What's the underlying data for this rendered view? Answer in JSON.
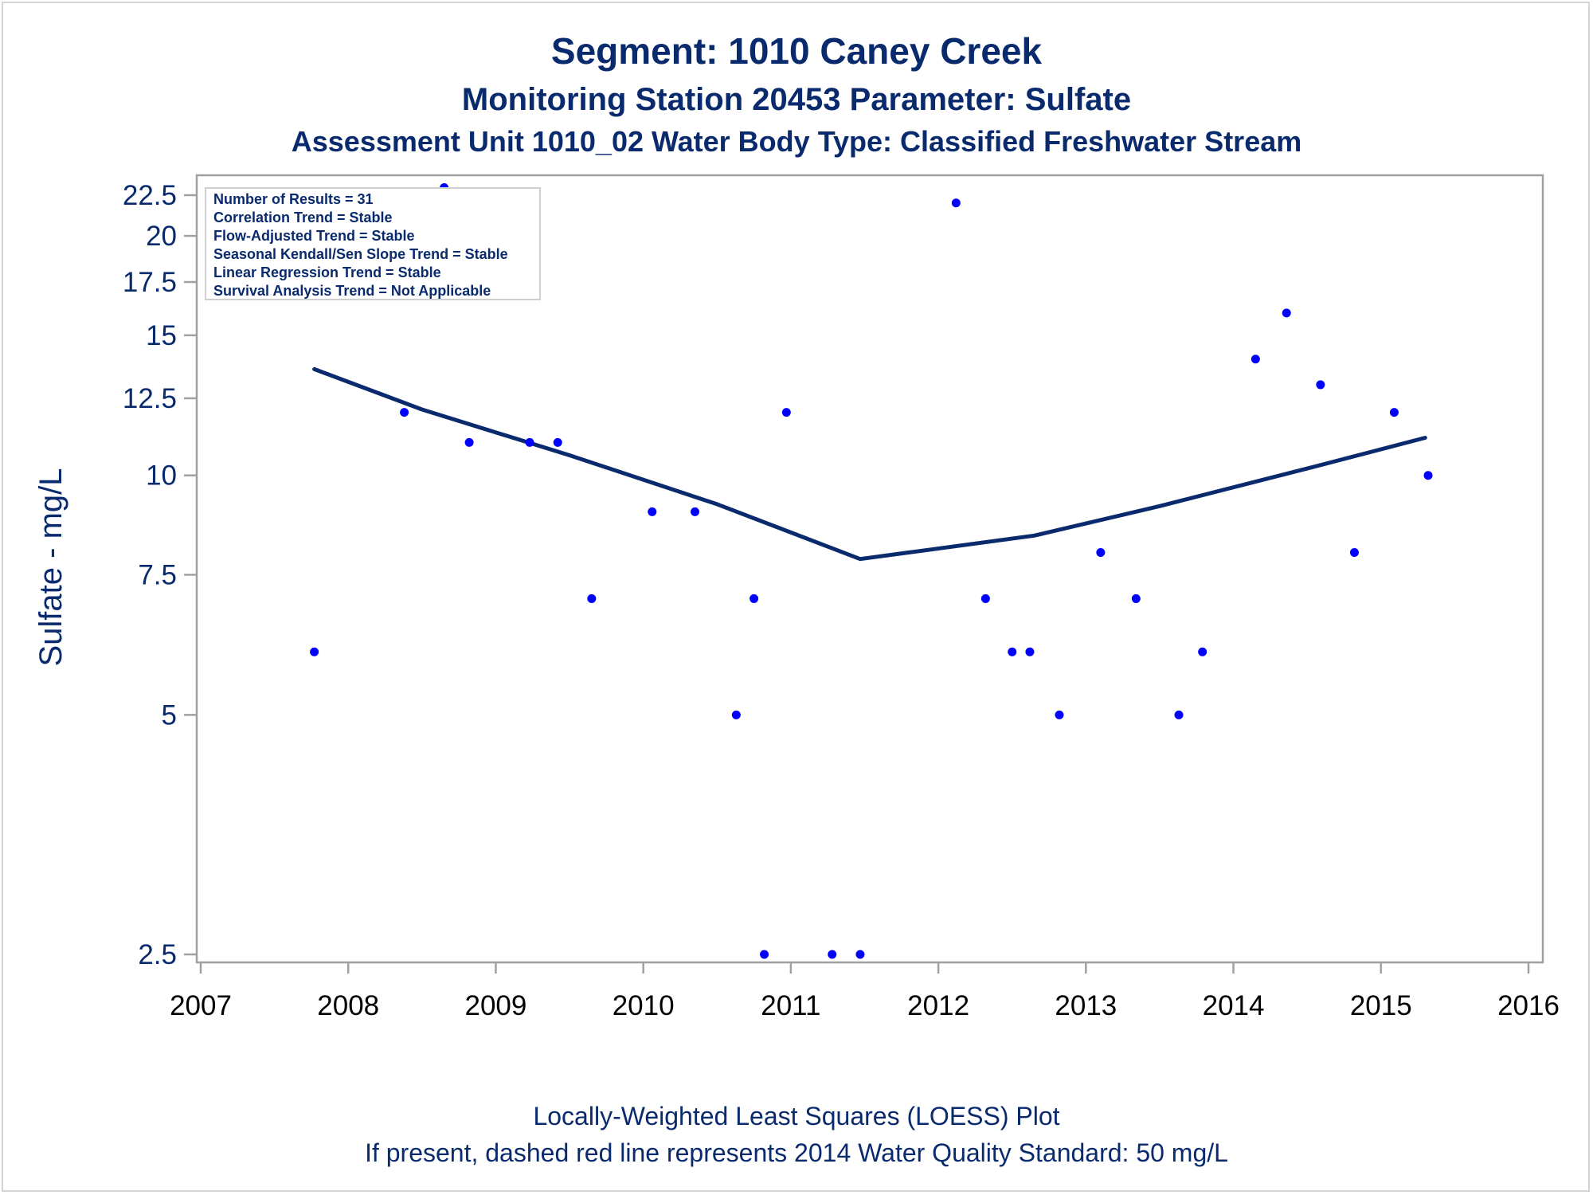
{
  "chart_data": {
    "type": "scatter",
    "title": "Segment: 1010  Caney Creek",
    "subtitle": "Monitoring Station 20453 Parameter: Sulfate",
    "subtitle2": "Assessment Unit 1010_02   Water Body Type: Classified Freshwater Stream",
    "ylabel": "Sulfate - mg/L",
    "xlabel": "",
    "y_scale": "log",
    "xlim": [
      2007,
      2016
    ],
    "ylim": [
      2.5,
      23.5
    ],
    "x_ticks": [
      "2007",
      "2008",
      "2009",
      "2010",
      "2011",
      "2012",
      "2013",
      "2014",
      "2015",
      "2016"
    ],
    "y_ticks": [
      "2.5",
      "5",
      "7.5",
      "10",
      "12.5",
      "15",
      "17.5",
      "20",
      "22.5"
    ],
    "grid": false,
    "legend_placement": "top-left",
    "stats_box": [
      "Number of Results = 31",
      "Correlation Trend = Stable",
      "Flow-Adjusted Trend = Stable",
      "Seasonal Kendall/Sen Slope Trend = Stable",
      "Linear Regression Trend = Stable",
      "Survival Analysis Trend = Not Applicable"
    ],
    "points": [
      {
        "x": 2007.77,
        "y": 6
      },
      {
        "x": 2008.15,
        "y": 20
      },
      {
        "x": 2008.38,
        "y": 12
      },
      {
        "x": 2008.65,
        "y": 23
      },
      {
        "x": 2008.82,
        "y": 11
      },
      {
        "x": 2009.23,
        "y": 11
      },
      {
        "x": 2009.42,
        "y": 11
      },
      {
        "x": 2009.65,
        "y": 7
      },
      {
        "x": 2010.06,
        "y": 9
      },
      {
        "x": 2010.35,
        "y": 9
      },
      {
        "x": 2010.63,
        "y": 5
      },
      {
        "x": 2010.75,
        "y": 7
      },
      {
        "x": 2010.82,
        "y": 2.5
      },
      {
        "x": 2010.97,
        "y": 12
      },
      {
        "x": 2011.28,
        "y": 2.5
      },
      {
        "x": 2011.47,
        "y": 2.5
      },
      {
        "x": 2012.12,
        "y": 22
      },
      {
        "x": 2012.32,
        "y": 7
      },
      {
        "x": 2012.5,
        "y": 6
      },
      {
        "x": 2012.62,
        "y": 6
      },
      {
        "x": 2012.82,
        "y": 5
      },
      {
        "x": 2013.1,
        "y": 8
      },
      {
        "x": 2013.34,
        "y": 7
      },
      {
        "x": 2013.63,
        "y": 5
      },
      {
        "x": 2013.79,
        "y": 6
      },
      {
        "x": 2014.15,
        "y": 14
      },
      {
        "x": 2014.36,
        "y": 16
      },
      {
        "x": 2014.59,
        "y": 13
      },
      {
        "x": 2014.82,
        "y": 8
      },
      {
        "x": 2015.09,
        "y": 12
      },
      {
        "x": 2015.32,
        "y": 10
      }
    ],
    "loess_line": [
      {
        "x": 2007.77,
        "y": 13.6
      },
      {
        "x": 2008.5,
        "y": 12.1
      },
      {
        "x": 2009.5,
        "y": 10.6
      },
      {
        "x": 2010.5,
        "y": 9.2
      },
      {
        "x": 2011.47,
        "y": 7.85
      },
      {
        "x": 2012.65,
        "y": 8.4
      },
      {
        "x": 2013.5,
        "y": 9.15
      },
      {
        "x": 2014.5,
        "y": 10.2
      },
      {
        "x": 2015.3,
        "y": 11.15
      }
    ],
    "footnote1": "Locally-Weighted Least Squares (LOESS) Plot",
    "footnote2": "If present, dashed red line represents 2014 Water Quality Standard: 50    mg/L",
    "colors": {
      "points": "#0000ff",
      "line": "#0a2a6e",
      "axis": "#a0a0a0",
      "text": "#0a2a6e"
    }
  }
}
